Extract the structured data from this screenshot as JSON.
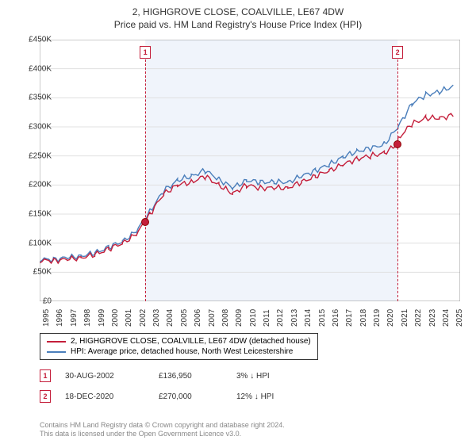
{
  "title_line1": "2, HIGHGROVE CLOSE, COALVILLE, LE67 4DW",
  "title_line2": "Price paid vs. HM Land Registry's House Price Index (HPI)",
  "chart": {
    "type": "line",
    "background_color": "#ffffff",
    "shaded_from_year": 2002.66,
    "shaded_to_year": 2020.96,
    "shaded_color": "#f0f4fb",
    "grid_color": "#e0e0e0",
    "xlim": [
      1995,
      2025.5
    ],
    "ylim": [
      0,
      450000
    ],
    "ytick_step": 50000,
    "y_ticks": [
      "£0",
      "£50K",
      "£100K",
      "£150K",
      "£200K",
      "£250K",
      "£300K",
      "£350K",
      "£400K",
      "£450K"
    ],
    "x_ticks": [
      1995,
      1996,
      1997,
      1998,
      1999,
      2000,
      2001,
      2002,
      2003,
      2004,
      2005,
      2006,
      2007,
      2008,
      2009,
      2010,
      2011,
      2012,
      2013,
      2014,
      2015,
      2016,
      2017,
      2018,
      2019,
      2020,
      2021,
      2022,
      2023,
      2024,
      2025
    ],
    "series": [
      {
        "name": "property",
        "label": "2, HIGHGROVE CLOSE, COALVILLE, LE67 4DW (detached house)",
        "color": "#c41e3a",
        "line_width": 1.4,
        "points": [
          [
            1995,
            70000
          ],
          [
            1996,
            70000
          ],
          [
            1997,
            72000
          ],
          [
            1998,
            75000
          ],
          [
            1999,
            80000
          ],
          [
            2000,
            90000
          ],
          [
            2001,
            100000
          ],
          [
            2002,
            115000
          ],
          [
            2002.66,
            136950
          ],
          [
            2003,
            150000
          ],
          [
            2004,
            185000
          ],
          [
            2005,
            200000
          ],
          [
            2006,
            205000
          ],
          [
            2007,
            215000
          ],
          [
            2008,
            200000
          ],
          [
            2009,
            185000
          ],
          [
            2010,
            200000
          ],
          [
            2011,
            195000
          ],
          [
            2012,
            195000
          ],
          [
            2013,
            195000
          ],
          [
            2014,
            205000
          ],
          [
            2015,
            215000
          ],
          [
            2016,
            225000
          ],
          [
            2017,
            235000
          ],
          [
            2018,
            245000
          ],
          [
            2019,
            250000
          ],
          [
            2020,
            255000
          ],
          [
            2020.96,
            270000
          ],
          [
            2021,
            280000
          ],
          [
            2022,
            305000
          ],
          [
            2023,
            315000
          ],
          [
            2024,
            315000
          ],
          [
            2025,
            320000
          ]
        ]
      },
      {
        "name": "hpi",
        "label": "HPI: Average price, detached house, North West Leicestershire",
        "color": "#4a7ebb",
        "line_width": 1.4,
        "points": [
          [
            1995,
            72000
          ],
          [
            1996,
            72000
          ],
          [
            1997,
            75000
          ],
          [
            1998,
            78000
          ],
          [
            1999,
            83000
          ],
          [
            2000,
            93000
          ],
          [
            2001,
            103000
          ],
          [
            2002,
            120000
          ],
          [
            2003,
            155000
          ],
          [
            2004,
            190000
          ],
          [
            2005,
            208000
          ],
          [
            2006,
            215000
          ],
          [
            2007,
            225000
          ],
          [
            2008,
            210000
          ],
          [
            2009,
            195000
          ],
          [
            2010,
            208000
          ],
          [
            2011,
            205000
          ],
          [
            2012,
            205000
          ],
          [
            2013,
            205000
          ],
          [
            2014,
            215000
          ],
          [
            2015,
            225000
          ],
          [
            2016,
            235000
          ],
          [
            2017,
            248000
          ],
          [
            2018,
            258000
          ],
          [
            2019,
            263000
          ],
          [
            2020,
            270000
          ],
          [
            2021,
            300000
          ],
          [
            2022,
            340000
          ],
          [
            2023,
            355000
          ],
          [
            2024,
            360000
          ],
          [
            2025,
            370000
          ]
        ]
      }
    ],
    "markers": [
      {
        "num": "1",
        "year": 2002.66,
        "value": 136950
      },
      {
        "num": "2",
        "year": 2020.96,
        "value": 270000
      }
    ]
  },
  "legend": {
    "items": [
      {
        "color": "#c41e3a",
        "label": "2, HIGHGROVE CLOSE, COALVILLE, LE67 4DW (detached house)"
      },
      {
        "color": "#4a7ebb",
        "label": "HPI: Average price, detached house, North West Leicestershire"
      }
    ]
  },
  "sales": [
    {
      "num": "1",
      "date": "30-AUG-2002",
      "price": "£136,950",
      "diff": "3% ↓ HPI"
    },
    {
      "num": "2",
      "date": "18-DEC-2020",
      "price": "£270,000",
      "diff": "12% ↓ HPI"
    }
  ],
  "footer_line1": "Contains HM Land Registry data © Crown copyright and database right 2024.",
  "footer_line2": "This data is licensed under the Open Government Licence v3.0."
}
